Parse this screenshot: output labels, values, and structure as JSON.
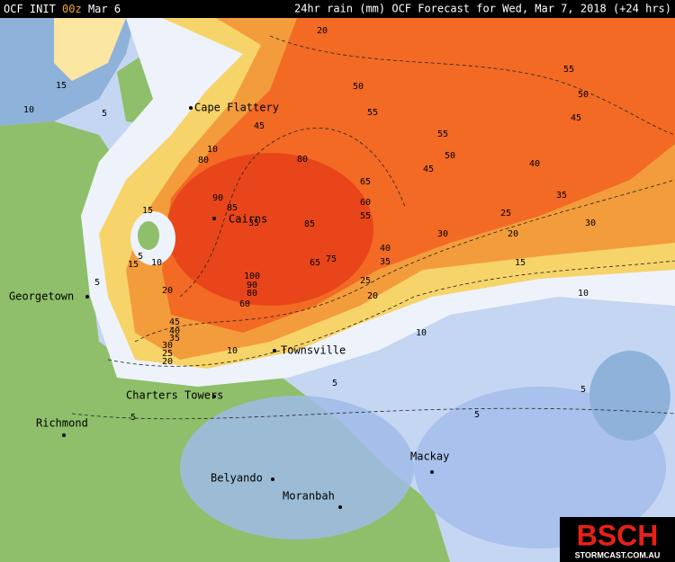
{
  "header": {
    "init": "OCF INIT",
    "run": "00z",
    "date": "Mar 6",
    "title": "24hr rain (mm) OCF Forecast for Wed, Mar 7, 2018 (+24 hrs)"
  },
  "places": [
    "Cape Flattery",
    "Cairns",
    "Georgetown",
    "Townsville",
    "Charters Towers",
    "Richmond",
    "Belyando",
    "Moranbah",
    "Mackay"
  ],
  "contour_labels": [
    20,
    55,
    50,
    50,
    55,
    45,
    55,
    50,
    45,
    40,
    80,
    80,
    10,
    65,
    60,
    55,
    35,
    90,
    85,
    85,
    35,
    25,
    30,
    30,
    20,
    40,
    35,
    65,
    75,
    15,
    100,
    90,
    80,
    60,
    25,
    20,
    10,
    15,
    15,
    10,
    5,
    20,
    5,
    45,
    40,
    35,
    30,
    25,
    20,
    10,
    10,
    15,
    10,
    5,
    5,
    5,
    5,
    5,
    45
  ],
  "logo": {
    "brand": "BSCH",
    "site": "STORMCAST.COM.AU"
  }
}
